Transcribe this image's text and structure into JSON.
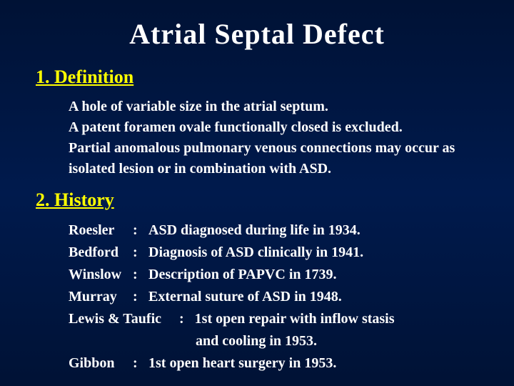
{
  "colors": {
    "background": "#001a4d",
    "title": "#ffffff",
    "heading": "#ffff00",
    "body": "#ffffff"
  },
  "fonts": {
    "family": "Times New Roman",
    "title_size_pt": 40,
    "heading_size_pt": 26,
    "body_size_pt": 20,
    "all_bold": true
  },
  "title": "Atrial  Septal  Defect",
  "sections": {
    "definition": {
      "heading": "1.  Definition",
      "text": "A hole of variable size in the atrial septum.\nA patent foramen ovale functionally closed is excluded.\nPartial anomalous pulmonary venous connections may occur as isolated lesion or in combination with ASD."
    },
    "history": {
      "heading": "2.  History",
      "rows": [
        {
          "name": "Roesler",
          "colon": ":",
          "desc": "ASD diagnosed during life in 1934."
        },
        {
          "name": "Bedford",
          "colon": ":",
          "desc": "Diagnosis of ASD clinically in 1941."
        },
        {
          "name": "Winslow",
          "colon": ":",
          "desc": "Description of PAPVC in 1739."
        },
        {
          "name": "Murray",
          "colon": ":",
          "desc": "External suture of ASD in 1948."
        }
      ],
      "free_lines": [
        "Lewis & Taufic     :   1st open repair  with inflow stasis"
      ],
      "indent_lines": [
        "and cooling in  1953."
      ],
      "rows_after": [
        {
          "name": "Gibbon",
          "colon": ":",
          "desc": "1st open heart surgery in 1953."
        }
      ]
    }
  }
}
